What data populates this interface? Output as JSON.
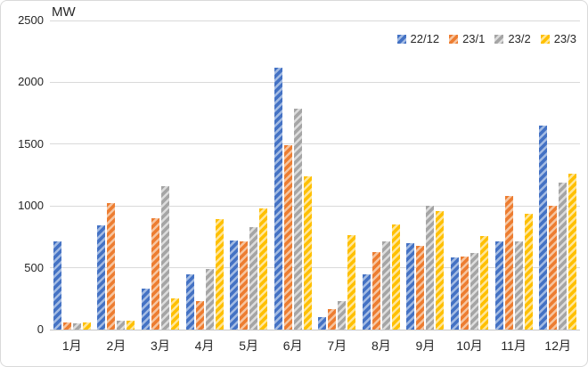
{
  "title": "MW",
  "chart_data": {
    "type": "bar",
    "title": "MW",
    "ylabel": "MW",
    "categories": [
      "1月",
      "2月",
      "3月",
      "4月",
      "5月",
      "6月",
      "7月",
      "8月",
      "9月",
      "10月",
      "11月",
      "12月"
    ],
    "series": [
      {
        "name": "22/12",
        "color": "#4472C4",
        "color_light": "#A3BBE3",
        "values": [
          710,
          840,
          330,
          445,
          720,
          2120,
          100,
          450,
          700,
          580,
          710,
          1650
        ]
      },
      {
        "name": "23/1",
        "color": "#ED7D31",
        "color_light": "#F6C5A0",
        "values": [
          55,
          1020,
          900,
          230,
          715,
          1490,
          165,
          630,
          675,
          590,
          1080,
          1000
        ]
      },
      {
        "name": "23/2",
        "color": "#A5A5A5",
        "color_light": "#DCDCDC",
        "values": [
          50,
          70,
          1160,
          490,
          830,
          1790,
          230,
          715,
          1005,
          620,
          710,
          1190
        ]
      },
      {
        "name": "23/3",
        "color": "#FFC000",
        "color_light": "#FFE699",
        "values": [
          55,
          75,
          255,
          890,
          980,
          1240,
          765,
          850,
          960,
          760,
          940,
          1260
        ]
      }
    ],
    "ylim": [
      0,
      2500
    ],
    "yticks": [
      0,
      500,
      1000,
      1500,
      2000,
      2500
    ],
    "grid": true,
    "legend_position": "top-right",
    "pattern": "diagonal-stripes"
  }
}
